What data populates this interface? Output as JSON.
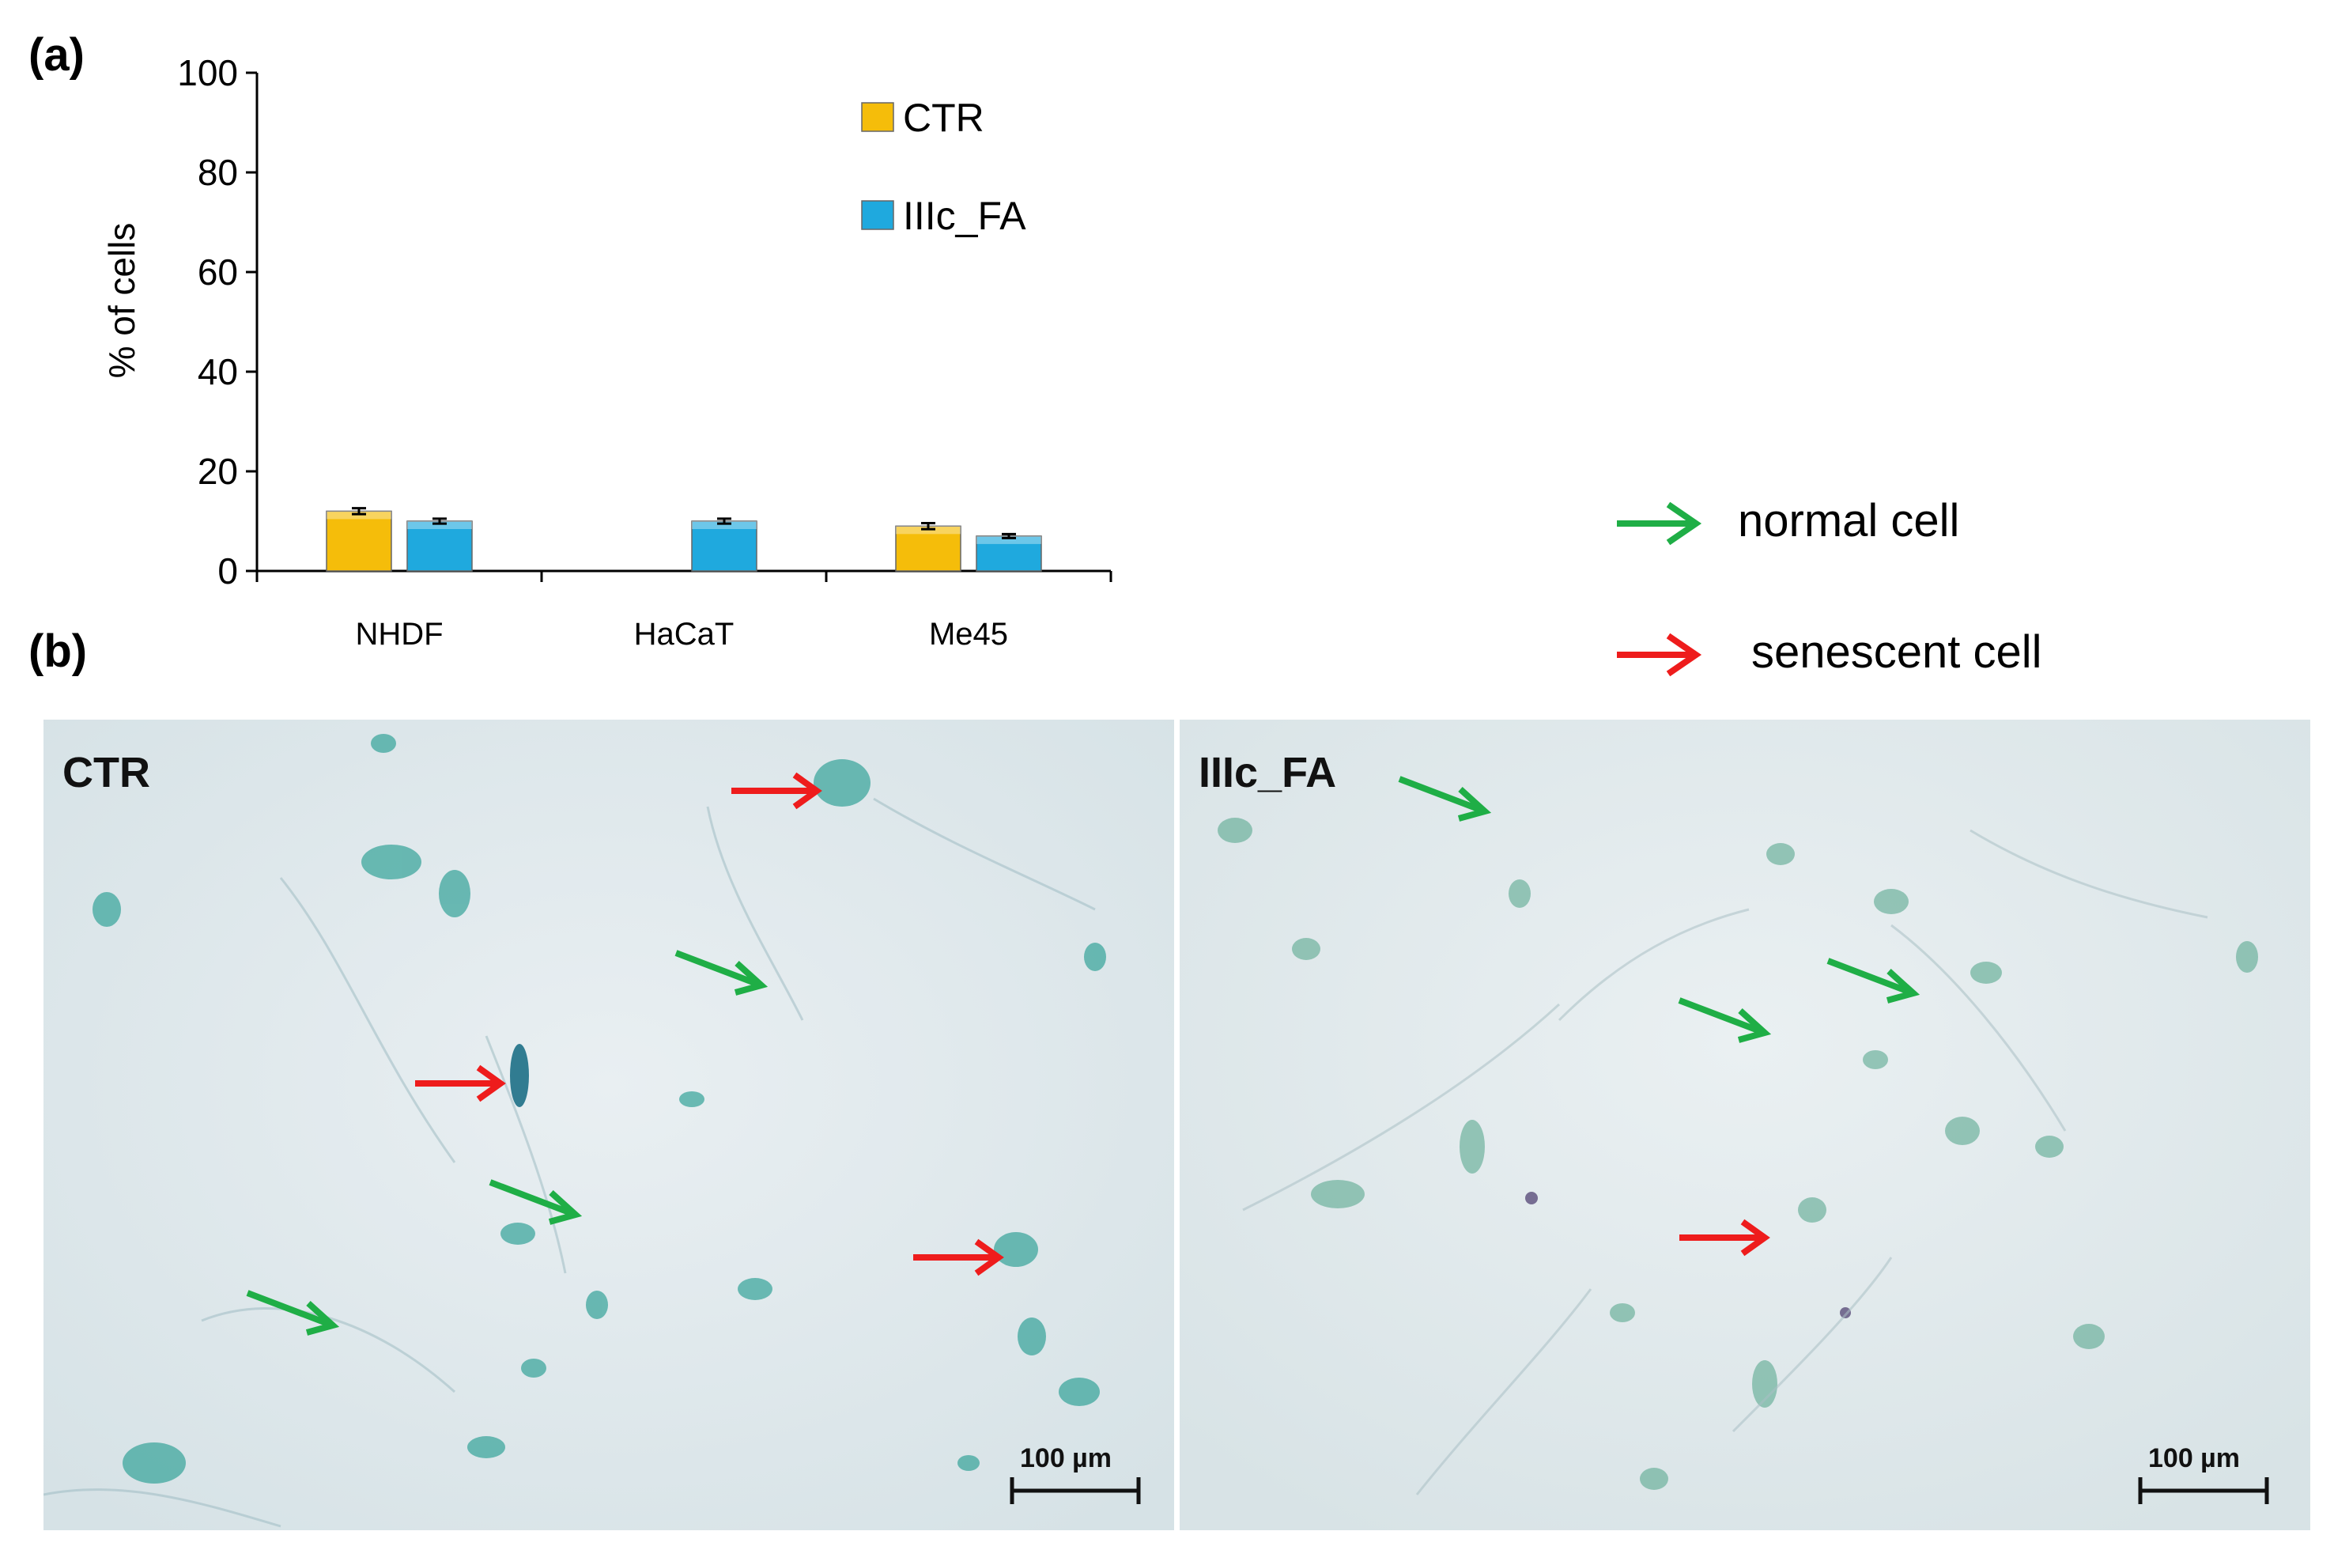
{
  "panels": {
    "a_label": "(a)",
    "b_label": "(b)"
  },
  "chart_data": {
    "type": "bar",
    "categories": [
      "NHDF",
      "HaCaT",
      "Me45"
    ],
    "series": [
      {
        "name": "CTR",
        "values": [
          12,
          null,
          9
        ],
        "errors": [
          0.6,
          null,
          0.6
        ],
        "color": "#f5bd0a"
      },
      {
        "name": "IIIc_FA",
        "values": [
          10,
          10,
          7
        ],
        "errors": [
          0.5,
          0.5,
          0.4
        ],
        "color": "#1fa9de"
      }
    ],
    "title": "",
    "xlabel": "",
    "ylabel": "% of cells",
    "ylim": [
      0,
      100
    ],
    "yticks": [
      0,
      20,
      40,
      60,
      80,
      100
    ],
    "legend_position": "top-center",
    "grid": false
  },
  "arrow_legend": {
    "normal": {
      "label": "normal cell",
      "color": "#1fae46"
    },
    "senescent": {
      "label": "senescent cell",
      "color": "#ee1c1c"
    }
  },
  "micrographs": {
    "left": {
      "title": "CTR",
      "scale": "100 µm"
    },
    "right": {
      "title": "IIIc_FA",
      "scale": "100 µm"
    }
  }
}
